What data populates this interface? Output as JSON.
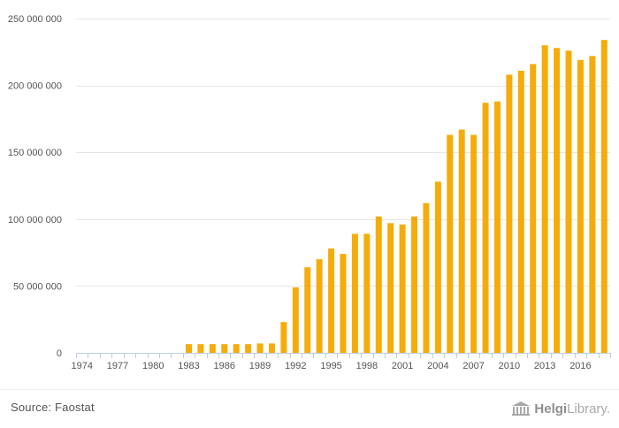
{
  "chart_data": {
    "type": "bar",
    "categories": [
      "1974",
      "1975",
      "1976",
      "1977",
      "1978",
      "1979",
      "1980",
      "1981",
      "1982",
      "1983",
      "1984",
      "1985",
      "1986",
      "1987",
      "1988",
      "1989",
      "1990",
      "1991",
      "1992",
      "1993",
      "1994",
      "1995",
      "1996",
      "1997",
      "1998",
      "1999",
      "2000",
      "2001",
      "2002",
      "2003",
      "2004",
      "2005",
      "2006",
      "2007",
      "2008",
      "2009",
      "2010",
      "2011",
      "2012",
      "2013",
      "2014",
      "2015",
      "2016",
      "2017",
      "2018"
    ],
    "values": [
      0,
      0,
      0,
      0,
      0,
      0,
      0,
      0,
      0,
      6500000,
      6500000,
      6500000,
      6500000,
      6500000,
      6500000,
      7000000,
      7000000,
      23000000,
      49000000,
      64000000,
      70000000,
      78000000,
      74000000,
      89000000,
      89000000,
      102000000,
      97000000,
      96000000,
      102000000,
      112000000,
      128000000,
      163000000,
      167000000,
      163000000,
      187000000,
      188000000,
      208000000,
      211000000,
      216000000,
      230000000,
      228000000,
      226000000,
      219000000,
      222000000,
      234000000
    ],
    "ylim": [
      0,
      250000000
    ],
    "yticks": [
      0,
      50000000,
      100000000,
      150000000,
      200000000,
      250000000
    ],
    "ytick_labels": [
      "0",
      "50 000 000",
      "100 000 000",
      "150 000 000",
      "200 000 000",
      "250 000 000"
    ],
    "xtick_labels": [
      "1974",
      "1977",
      "1980",
      "1983",
      "1986",
      "1989",
      "1992",
      "1995",
      "1998",
      "2001",
      "2004",
      "2007",
      "2010",
      "2013",
      "2016"
    ],
    "title": "",
    "xlabel": "",
    "ylabel": "",
    "grid": "horizontal",
    "bar_color": "#f5ac0a",
    "grid_color": "#e6e6e6",
    "axis_color": "#c0cbe0"
  },
  "footer": {
    "source_label": "Source: Faostat",
    "brand_bold": "Helgi",
    "brand_light": "Library",
    "brand_dot": "."
  }
}
